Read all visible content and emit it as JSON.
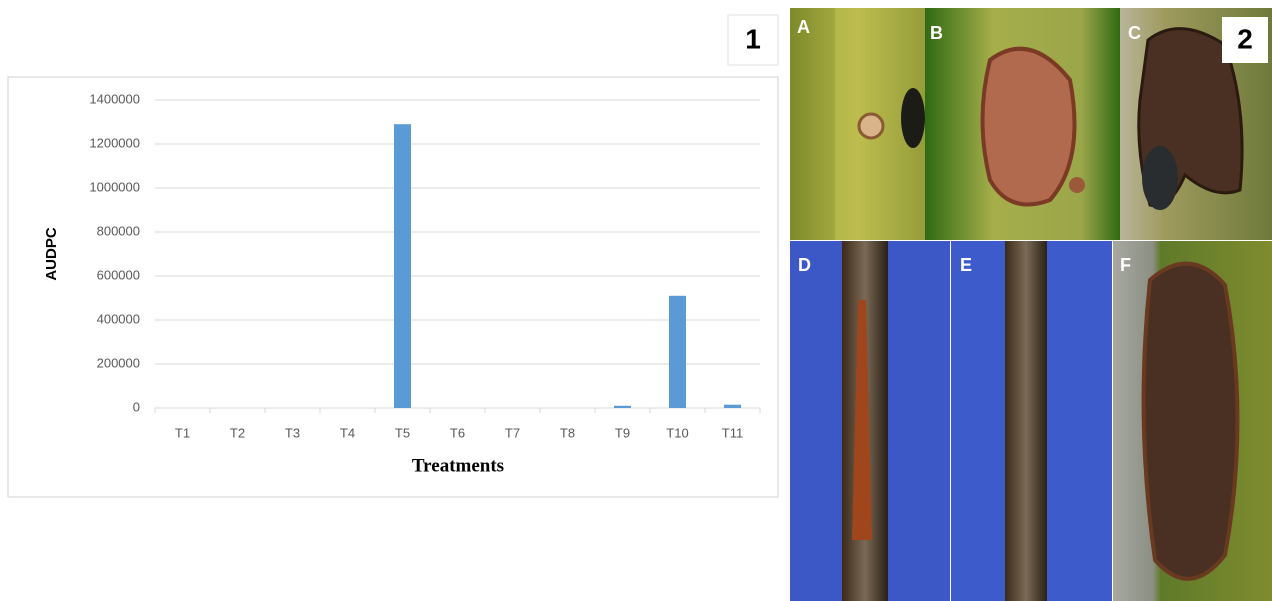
{
  "chart_data": {
    "type": "bar",
    "ylabel": "AUDPC",
    "xlabel": "Treatments",
    "categories": [
      "T1",
      "T2",
      "T3",
      "T4",
      "T5",
      "T6",
      "T7",
      "T8",
      "T9",
      "T10",
      "T11"
    ],
    "values": [
      0,
      0,
      0,
      0,
      1290000,
      0,
      0,
      0,
      10000,
      510000,
      15000
    ],
    "color": "#5b9bd5",
    "ylim": [
      0,
      1400000
    ],
    "yticks": [
      0,
      200000,
      400000,
      600000,
      800000,
      1000000,
      1200000,
      1400000
    ],
    "grid": true
  },
  "figure": {
    "panel_numbers": [
      "1",
      "2"
    ],
    "photo_labels": [
      "A",
      "B",
      "C",
      "D",
      "E",
      "F"
    ]
  }
}
